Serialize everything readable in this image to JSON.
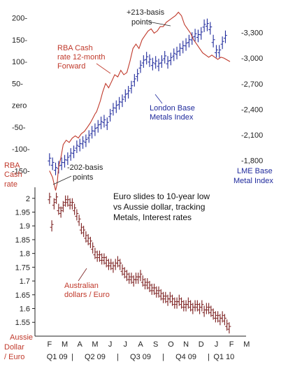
{
  "chart_data": [
    {
      "type": "line",
      "title": "",
      "left_axis": {
        "label": "",
        "ticks": [
          "200-",
          "150-",
          "100-",
          "50-",
          "zero",
          "-50-",
          "-100-",
          "-150-"
        ],
        "values": [
          200,
          150,
          100,
          50,
          0,
          -50,
          -100,
          -150
        ],
        "range": [
          -175,
          225
        ]
      },
      "right_axis": {
        "label": "LME Base Metal Index",
        "ticks": [
          "-3,300",
          "-3,000",
          "-2,700",
          "-2,400",
          "-2,100",
          "-1,800"
        ],
        "values": [
          3300,
          3000,
          2700,
          2400,
          2100,
          1800
        ],
        "range": [
          1550,
          3600
        ]
      },
      "series": [
        {
          "name": "RBA Cash rate 12-month Forward",
          "axis": "left",
          "color": "#c0392b",
          "x": [
            0.5,
            0.7,
            0.9,
            1.0,
            1.1,
            1.25,
            1.4,
            1.6,
            1.8,
            2.0,
            2.2,
            2.4,
            2.6,
            2.8,
            3.0,
            3.2,
            3.35,
            3.5,
            3.6,
            3.7,
            3.85,
            4.0,
            4.2,
            4.4,
            4.6,
            4.8,
            5.0,
            5.2,
            5.4,
            5.6,
            5.8,
            6.0,
            6.2,
            6.4,
            6.6,
            6.8,
            7.0,
            7.2,
            7.4,
            7.6,
            7.8,
            8.0,
            8.2,
            8.4,
            8.6,
            8.8,
            9.0,
            9.2,
            9.4,
            9.6,
            9.8,
            10.0,
            10.2,
            10.4,
            10.6,
            10.8,
            11.0,
            11.2,
            11.4,
            11.6,
            11.8,
            12.0,
            12.2,
            12.4
          ],
          "y": [
            -150,
            -165,
            -195,
            -180,
            -140,
            -120,
            -90,
            -80,
            -85,
            -75,
            -70,
            -75,
            -65,
            -60,
            -50,
            -40,
            -30,
            -20,
            -15,
            -5,
            10,
            30,
            50,
            40,
            55,
            70,
            65,
            80,
            70,
            75,
            100,
            130,
            140,
            130,
            150,
            160,
            170,
            175,
            165,
            170,
            180,
            180,
            190,
            195,
            200,
            205,
            213,
            205,
            185,
            175,
            165,
            150,
            140,
            130,
            120,
            115,
            110,
            115,
            110,
            105,
            110,
            108,
            104,
            100
          ]
        },
        {
          "name": "London Base Metals Index",
          "axis": "right",
          "color": "#1f2a9c",
          "x": [
            0.5,
            0.7,
            0.9,
            1.1,
            1.3,
            1.5,
            1.7,
            1.9,
            2.1,
            2.3,
            2.5,
            2.7,
            2.9,
            3.1,
            3.3,
            3.5,
            3.7,
            3.9,
            4.1,
            4.3,
            4.5,
            4.7,
            4.9,
            5.1,
            5.3,
            5.5,
            5.7,
            5.9,
            6.1,
            6.3,
            6.5,
            6.7,
            6.9,
            7.1,
            7.3,
            7.5,
            7.7,
            7.9,
            8.1,
            8.3,
            8.5,
            8.7,
            8.9,
            9.1,
            9.3,
            9.5,
            9.7,
            9.9,
            10.1,
            10.3,
            10.5,
            10.7,
            10.9,
            11.1,
            11.3,
            11.5,
            11.7,
            11.9,
            12.1
          ],
          "y": [
            1810,
            1760,
            1700,
            1720,
            1760,
            1790,
            1820,
            1870,
            1900,
            1960,
            1980,
            2010,
            2030,
            2080,
            2130,
            2160,
            2200,
            2240,
            2260,
            2230,
            2330,
            2400,
            2430,
            2470,
            2500,
            2560,
            2600,
            2660,
            2740,
            2800,
            2900,
            2960,
            3000,
            2970,
            2930,
            2950,
            2920,
            2960,
            3010,
            2950,
            2990,
            3040,
            3060,
            3100,
            3130,
            3160,
            3200,
            3230,
            3270,
            3260,
            3290,
            3380,
            3390,
            3350,
            3200,
            3080,
            3080,
            3180,
            3250
          ]
        }
      ],
      "annotations": [
        {
          "text": "+213-basis",
          "line2": "points"
        },
        {
          "text": "-202-basis",
          "line2": "points"
        }
      ],
      "left_axis_tag": [
        "RBA",
        "Cash",
        "rate"
      ]
    },
    {
      "type": "line",
      "title": "Euro slides to 10-year low vs Aussie dollar, tracking Metals, Interest rates",
      "title_lines": [
        "Euro slides to 10-year low",
        "vs Aussie dollar, tracking",
        "Metals, Interest rates"
      ],
      "y_axis": {
        "label": "Aussie Dollar / Euro",
        "label_lines": [
          "Aussie",
          "Dollar",
          "/ Euro"
        ],
        "ticks": [
          "2",
          "1.95",
          "1.9",
          "1.85",
          "1.8",
          "1.75",
          "1.7",
          "1.65",
          "1.6",
          "1.55"
        ],
        "values": [
          2.0,
          1.95,
          1.9,
          1.85,
          1.8,
          1.75,
          1.7,
          1.65,
          1.6,
          1.55
        ],
        "range": [
          1.51,
          2.04
        ]
      },
      "x_axis": {
        "months": [
          "F",
          "M",
          "A",
          "M",
          "J",
          "J",
          "A",
          "S",
          "O",
          "N",
          "D",
          "J",
          "F",
          "M"
        ],
        "quarters": [
          "Q1 09",
          "Q2 09",
          "Q3 09",
          "Q4 09",
          "Q1 10"
        ]
      },
      "series": [
        {
          "name": "Australian dollars / Euro",
          "color": "#7a1d1d",
          "x": [
            0.5,
            0.65,
            0.8,
            0.95,
            1.1,
            1.25,
            1.4,
            1.55,
            1.7,
            1.85,
            2.0,
            2.15,
            2.3,
            2.45,
            2.6,
            2.75,
            2.9,
            3.05,
            3.2,
            3.35,
            3.5,
            3.65,
            3.8,
            3.95,
            4.1,
            4.25,
            4.4,
            4.55,
            4.7,
            4.85,
            5.0,
            5.15,
            5.3,
            5.45,
            5.6,
            5.75,
            5.9,
            6.05,
            6.2,
            6.35,
            6.5,
            6.65,
            6.8,
            6.95,
            7.1,
            7.25,
            7.4,
            7.55,
            7.7,
            7.85,
            8.0,
            8.15,
            8.3,
            8.45,
            8.6,
            8.75,
            8.9,
            9.05,
            9.2,
            9.35,
            9.5,
            9.65,
            9.8,
            9.95,
            10.1,
            10.25,
            10.4,
            10.55,
            10.7,
            10.85,
            11.0,
            11.15,
            11.3,
            11.45,
            11.6,
            11.75,
            11.9,
            12.05,
            12.2,
            12.35
          ],
          "y": [
            2.0,
            1.9,
            1.98,
            2.0,
            1.96,
            1.95,
            1.97,
            1.99,
            1.99,
            1.98,
            1.98,
            1.96,
            1.94,
            1.92,
            1.89,
            1.88,
            1.86,
            1.85,
            1.84,
            1.82,
            1.8,
            1.79,
            1.79,
            1.78,
            1.78,
            1.77,
            1.76,
            1.76,
            1.75,
            1.76,
            1.77,
            1.76,
            1.74,
            1.73,
            1.72,
            1.71,
            1.71,
            1.7,
            1.71,
            1.71,
            1.72,
            1.7,
            1.69,
            1.69,
            1.68,
            1.67,
            1.67,
            1.66,
            1.66,
            1.65,
            1.64,
            1.64,
            1.63,
            1.64,
            1.63,
            1.62,
            1.62,
            1.63,
            1.62,
            1.61,
            1.61,
            1.62,
            1.61,
            1.6,
            1.61,
            1.61,
            1.6,
            1.61,
            1.59,
            1.6,
            1.6,
            1.59,
            1.58,
            1.57,
            1.57,
            1.56,
            1.57,
            1.56,
            1.54,
            1.53
          ]
        }
      ]
    }
  ],
  "labels": {
    "rba_series": [
      "RBA Cash",
      "rate 12-month",
      "Forward"
    ],
    "lme_series": [
      "London Base",
      "Metals Index"
    ],
    "lme_axis_tag": [
      "LME Base",
      "Metal Index"
    ],
    "aud_series": [
      "Australian",
      "dollars / Euro"
    ],
    "ann_up": [
      "+213-basis",
      "points"
    ],
    "ann_down": [
      "-202-basis",
      "points"
    ]
  },
  "colors": {
    "red": "#c0392b",
    "blue": "#1f2a9c",
    "maroon": "#7a1d1d",
    "axis": "#222222"
  }
}
